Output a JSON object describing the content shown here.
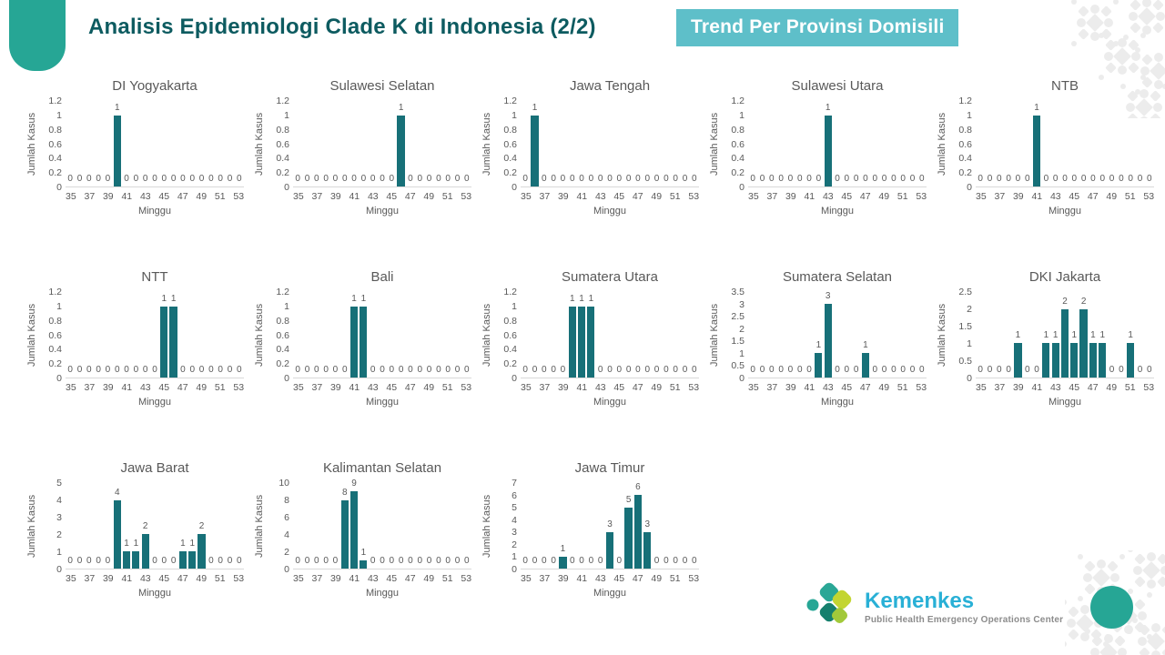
{
  "page": {
    "title": "Analisis Epidemiologi Clade K di Indonesia (2/2)",
    "badge": "Trend Per Provinsi Domisili"
  },
  "footer": {
    "logo_icon": "kemenkes-flower-icon",
    "logo_title": "Kemenkes",
    "logo_subtitle": "Public Health Emergency Operations Center"
  },
  "colors": {
    "bar": "#177078",
    "title_text": "#0d5b60",
    "badge_bg": "#5ebfc9",
    "accent_teal": "#26a695",
    "chart_text": "#595959",
    "logo_blue": "#29b0d6",
    "pattern_gray": "#ececec"
  },
  "chart_data": {
    "type": "bar",
    "xlabel": "Minggu",
    "ylabel": "Jumlah Kasus",
    "weeks": [
      35,
      36,
      37,
      38,
      39,
      40,
      41,
      42,
      43,
      44,
      45,
      46,
      47,
      48,
      49,
      50,
      51,
      52,
      53
    ],
    "xticks": [
      35,
      37,
      39,
      41,
      43,
      45,
      47,
      49,
      51,
      53
    ],
    "grid": false,
    "data_labels": true,
    "charts": [
      {
        "title": "DI Yogyakarta",
        "ymax": 1.2,
        "yticks": [
          0,
          0.2,
          0.4,
          0.6,
          0.8,
          1,
          1.2
        ],
        "values": [
          0,
          0,
          0,
          0,
          0,
          1,
          0,
          0,
          0,
          0,
          0,
          0,
          0,
          0,
          0,
          0,
          0,
          0,
          0
        ]
      },
      {
        "title": "Sulawesi Selatan",
        "ymax": 1.2,
        "yticks": [
          0,
          0.2,
          0.4,
          0.6,
          0.8,
          1,
          1.2
        ],
        "values": [
          0,
          0,
          0,
          0,
          0,
          0,
          0,
          0,
          0,
          0,
          0,
          1,
          0,
          0,
          0,
          0,
          0,
          0,
          0
        ]
      },
      {
        "title": "Jawa Tengah",
        "ymax": 1.2,
        "yticks": [
          0,
          0.2,
          0.4,
          0.6,
          0.8,
          1,
          1.2
        ],
        "values": [
          0,
          1,
          0,
          0,
          0,
          0,
          0,
          0,
          0,
          0,
          0,
          0,
          0,
          0,
          0,
          0,
          0,
          0,
          0
        ]
      },
      {
        "title": "Sulawesi Utara",
        "ymax": 1.2,
        "yticks": [
          0,
          0.2,
          0.4,
          0.6,
          0.8,
          1,
          1.2
        ],
        "values": [
          0,
          0,
          0,
          0,
          0,
          0,
          0,
          0,
          1,
          0,
          0,
          0,
          0,
          0,
          0,
          0,
          0,
          0,
          0
        ]
      },
      {
        "title": "NTB",
        "ymax": 1.2,
        "yticks": [
          0,
          0.2,
          0.4,
          0.6,
          0.8,
          1,
          1.2
        ],
        "values": [
          0,
          0,
          0,
          0,
          0,
          0,
          1,
          0,
          0,
          0,
          0,
          0,
          0,
          0,
          0,
          0,
          0,
          0,
          0
        ]
      },
      {
        "title": "NTT",
        "ymax": 1.2,
        "yticks": [
          0,
          0.2,
          0.4,
          0.6,
          0.8,
          1,
          1.2
        ],
        "values": [
          0,
          0,
          0,
          0,
          0,
          0,
          0,
          0,
          0,
          0,
          1,
          1,
          0,
          0,
          0,
          0,
          0,
          0,
          0
        ]
      },
      {
        "title": "Bali",
        "ymax": 1.2,
        "yticks": [
          0,
          0.2,
          0.4,
          0.6,
          0.8,
          1,
          1.2
        ],
        "values": [
          0,
          0,
          0,
          0,
          0,
          0,
          1,
          1,
          0,
          0,
          0,
          0,
          0,
          0,
          0,
          0,
          0,
          0,
          0
        ]
      },
      {
        "title": "Sumatera Utara",
        "ymax": 1.2,
        "yticks": [
          0,
          0.2,
          0.4,
          0.6,
          0.8,
          1,
          1.2
        ],
        "values": [
          0,
          0,
          0,
          0,
          0,
          1,
          1,
          1,
          0,
          0,
          0,
          0,
          0,
          0,
          0,
          0,
          0,
          0,
          0
        ]
      },
      {
        "title": "Sumatera Selatan",
        "ymax": 3.5,
        "yticks": [
          0,
          0.5,
          1,
          1.5,
          2,
          2.5,
          3,
          3.5
        ],
        "values": [
          0,
          0,
          0,
          0,
          0,
          0,
          0,
          1,
          3,
          0,
          0,
          0,
          1,
          0,
          0,
          0,
          0,
          0,
          0
        ]
      },
      {
        "title": "DKI Jakarta",
        "ymax": 2.5,
        "yticks": [
          0,
          0.5,
          1,
          1.5,
          2,
          2.5
        ],
        "values": [
          0,
          0,
          0,
          0,
          1,
          0,
          0,
          1,
          1,
          2,
          1,
          2,
          1,
          1,
          0,
          0,
          1,
          0,
          0
        ]
      },
      {
        "title": "Jawa Barat",
        "ymax": 5,
        "yticks": [
          0,
          1,
          2,
          3,
          4,
          5
        ],
        "values": [
          0,
          0,
          0,
          0,
          0,
          4,
          1,
          1,
          2,
          0,
          0,
          0,
          1,
          1,
          2,
          0,
          0,
          0,
          0
        ]
      },
      {
        "title": "Kalimantan Selatan",
        "ymax": 10,
        "yticks": [
          0,
          2,
          4,
          6,
          8,
          10
        ],
        "values": [
          0,
          0,
          0,
          0,
          0,
          8,
          9,
          1,
          0,
          0,
          0,
          0,
          0,
          0,
          0,
          0,
          0,
          0,
          0
        ]
      },
      {
        "title": "Jawa Timur",
        "ymax": 7,
        "yticks": [
          0,
          1,
          2,
          3,
          4,
          5,
          6,
          7
        ],
        "values": [
          0,
          0,
          0,
          0,
          1,
          0,
          0,
          0,
          0,
          3,
          0,
          5,
          6,
          3,
          0,
          0,
          0,
          0,
          0
        ]
      }
    ]
  }
}
